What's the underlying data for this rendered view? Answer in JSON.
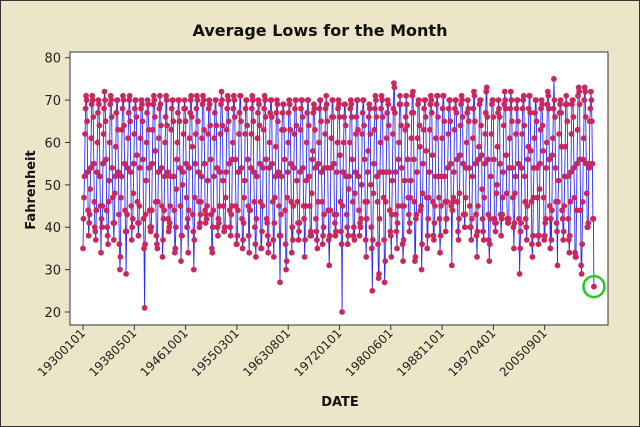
{
  "chart_data": {
    "type": "line",
    "title": "Average Lows for the Month",
    "xlabel": "DATE",
    "ylabel": "Fahrenheit",
    "ylim": [
      16,
      82
    ],
    "yticks": [
      20,
      30,
      40,
      50,
      60,
      70,
      80
    ],
    "x_start": "19300101",
    "x_interval": "monthly",
    "xtick_labels": [
      "19300101",
      "19380501",
      "19461001",
      "19550301",
      "19630801",
      "19720101",
      "19800601",
      "19881101",
      "19970401",
      "20050901"
    ],
    "xtick_every_n_points": 100,
    "grid": false,
    "highlight": {
      "label": "last point",
      "index": 996,
      "value": 26
    },
    "colors": {
      "line": "#2a2aff",
      "marker": "#c8285f",
      "highlight": "#22cc22",
      "background": "#ece5c8",
      "plot": "#ffffff"
    },
    "values": [
      35,
      42,
      47,
      52,
      62,
      68,
      71,
      70,
      65,
      53,
      44,
      38,
      41,
      43,
      49,
      54,
      61,
      69,
      71,
      70,
      66,
      55,
      46,
      40,
      39,
      37,
      44,
      53,
      60,
      67,
      70,
      69,
      64,
      52,
      45,
      34,
      42,
      40,
      45,
      55,
      62,
      68,
      72,
      70,
      65,
      56,
      44,
      40,
      38,
      36,
      46,
      51,
      60,
      69,
      71,
      70,
      66,
      54,
      47,
      41,
      37,
      41,
      48,
      52,
      59,
      67,
      70,
      70,
      63,
      53,
      43,
      36,
      30,
      33,
      47,
      52,
      63,
      68,
      71,
      70,
      64,
      55,
      44,
      39,
      29,
      39,
      43,
      54,
      61,
      67,
      70,
      71,
      65,
      53,
      45,
      37,
      40,
      42,
      48,
      55,
      62,
      68,
      70,
      70,
      66,
      57,
      46,
      41,
      38,
      41,
      45,
      54,
      61,
      68,
      70,
      69,
      65,
      56,
      42,
      35,
      21,
      36,
      43,
      51,
      60,
      67,
      70,
      69,
      63,
      54,
      44,
      40,
      39,
      40,
      44,
      55,
      63,
      69,
      71,
      70,
      66,
      58,
      46,
      38,
      36,
      35,
      46,
      53,
      61,
      68,
      71,
      69,
      64,
      54,
      45,
      33,
      37,
      42,
      44,
      52,
      60,
      66,
      71,
      70,
      64,
      53,
      42,
      39,
      40,
      41,
      45,
      52,
      63,
      68,
      70,
      70,
      65,
      52,
      44,
      34,
      35,
      40,
      49,
      56,
      60,
      67,
      70,
      70,
      65,
      54,
      45,
      32,
      38,
      38,
      50,
      53,
      62,
      68,
      70,
      68,
      65,
      55,
      47,
      40,
      42,
      34,
      44,
      54,
      61,
      67,
      70,
      71,
      66,
      59,
      43,
      39,
      30,
      37,
      47,
      55,
      62,
      68,
      71,
      70,
      65,
      53,
      46,
      40,
      41,
      43,
      46,
      52,
      61,
      69,
      71,
      70,
      63,
      55,
      44,
      41,
      43,
      42,
      45,
      51,
      62,
      68,
      70,
      69,
      64,
      56,
      43,
      35,
      34,
      40,
      44,
      52,
      61,
      67,
      70,
      70,
      64,
      54,
      40,
      38,
      42,
      41,
      45,
      53,
      62,
      69,
      72,
      70,
      64,
      51,
      45,
      39,
      40,
      40,
      47,
      53,
      63,
      68,
      71,
      70,
      65,
      55,
      44,
      40,
      38,
      43,
      45,
      56,
      60,
      68,
      71,
      70,
      66,
      56,
      45,
      36,
      36,
      38,
      44,
      53,
      62,
      67,
      71,
      71,
      65,
      54,
      42,
      35,
      37,
      41,
      47,
      51,
      62,
      68,
      70,
      70,
      64,
      56,
      45,
      38,
      34,
      44,
      44,
      54,
      62,
      68,
      71,
      70,
      65,
      53,
      46,
      40,
      36,
      33,
      42,
      52,
      61,
      67,
      70,
      69,
      64,
      55,
      46,
      35,
      35,
      39,
      45,
      54,
      63,
      68,
      71,
      70,
      66,
      56,
      42,
      41,
      38,
      34,
      36,
      54,
      60,
      67,
      70,
      70,
      66,
      55,
      46,
      37,
      33,
      41,
      47,
      52,
      59,
      67,
      70,
      69,
      65,
      53,
      45,
      38,
      27,
      38,
      43,
      52,
      63,
      67,
      69,
      69,
      63,
      56,
      44,
      36,
      30,
      32,
      47,
      53,
      60,
      67,
      70,
      69,
      63,
      55,
      46,
      34,
      40,
      37,
      45,
      54,
      62,
      68,
      70,
      70,
      64,
      51,
      46,
      41,
      37,
      39,
      41,
      53,
      63,
      68,
      70,
      70,
      66,
      54,
      45,
      42,
      33,
      37,
      45,
      51,
      60,
      67,
      70,
      70,
      64,
      52,
      45,
      38,
      39,
      38,
      48,
      56,
      58,
      67,
      69,
      68,
      63,
      54,
      42,
      39,
      37,
      35,
      46,
      55,
      60,
      68,
      70,
      70,
      65,
      53,
      46,
      36,
      38,
      40,
      43,
      54,
      62,
      68,
      71,
      69,
      65,
      54,
      44,
      37,
      31,
      38,
      44,
      54,
      61,
      66,
      70,
      70,
      66,
      55,
      43,
      41,
      38,
      39,
      43,
      53,
      60,
      68,
      70,
      69,
      66,
      57,
      46,
      39,
      36,
      20,
      45,
      53,
      60,
      66,
      69,
      69,
      64,
      52,
      43,
      40,
      36,
      38,
      49,
      52,
      60,
      68,
      70,
      69,
      66,
      56,
      46,
      38,
      40,
      37,
      48,
      53,
      62,
      66,
      70,
      70,
      63,
      52,
      44,
      38,
      41,
      40,
      42,
      50,
      62,
      67,
      70,
      70,
      64,
      56,
      46,
      37,
      33,
      42,
      46,
      53,
      58,
      66,
      69,
      68,
      62,
      50,
      40,
      35,
      25,
      37,
      48,
      55,
      63,
      68,
      71,
      70,
      66,
      52,
      46,
      36,
      28,
      29,
      42,
      53,
      60,
      68,
      71,
      70,
      66,
      53,
      47,
      37,
      27,
      32,
      46,
      53,
      61,
      67,
      70,
      69,
      64,
      53,
      44,
      39,
      38,
      33,
      43,
      51,
      62,
      68,
      74,
      73,
      67,
      53,
      43,
      39,
      35,
      41,
      45,
      56,
      60,
      69,
      71,
      69,
      64,
      54,
      45,
      36,
      32,
      37,
      45,
      51,
      63,
      66,
      71,
      69,
      64,
      56,
      47,
      43,
      39,
      41,
      47,
      51,
      61,
      67,
      71,
      72,
      67,
      56,
      46,
      32,
      33,
      42,
      43,
      53,
      61,
      69,
      70,
      70,
      64,
      59,
      44,
      45,
      30,
      36,
      48,
      55,
      63,
      68,
      70,
      70,
      66,
      58,
      47,
      35,
      38,
      42,
      47,
      53,
      63,
      69,
      71,
      70,
      67,
      57,
      46,
      38,
      37,
      41,
      45,
      52,
      61,
      69,
      71,
      71,
      66,
      52,
      47,
      42,
      34,
      38,
      45,
      52,
      61,
      68,
      71,
      71,
      65,
      52,
      46,
      39,
      42,
      42,
      46,
      54,
      62,
      68,
      70,
      70,
      65,
      55,
      45,
      31,
      44,
      46,
      47,
      53,
      63,
      68,
      70,
      70,
      67,
      56,
      46,
      39,
      37,
      42,
      48,
      57,
      64,
      69,
      71,
      70,
      66,
      55,
      43,
      43,
      40,
      43,
      47,
      54,
      60,
      67,
      70,
      68,
      65,
      54,
      45,
      40,
      40,
      37,
      42,
      52,
      61,
      68,
      72,
      71,
      65,
      55,
      43,
      38,
      33,
      39,
      45,
      56,
      59,
      69,
      70,
      70,
      64,
      57,
      49,
      42,
      39,
      37,
      47,
      55,
      62,
      67,
      72,
      73,
      66,
      56,
      43,
      37,
      32,
      36,
      42,
      52,
      62,
      69,
      70,
      70,
      66,
      56,
      42,
      41,
      39,
      41,
      48,
      50,
      59,
      67,
      70,
      68,
      66,
      55,
      43,
      38,
      42,
      43,
      47,
      53,
      64,
      69,
      72,
      70,
      68,
      57,
      48,
      42,
      41,
      41,
      42,
      54,
      61,
      68,
      72,
      70,
      65,
      54,
      47,
      40,
      35,
      41,
      48,
      52,
      62,
      68,
      70,
      70,
      65,
      55,
      42,
      29,
      35,
      39,
      41,
      54,
      62,
      68,
      70,
      71,
      64,
      52,
      46,
      42,
      40,
      37,
      45,
      56,
      59,
      68,
      71,
      71,
      67,
      58,
      46,
      36,
      33,
      38,
      47,
      54,
      61,
      67,
      70,
      70,
      65,
      54,
      47,
      38,
      36,
      38,
      49,
      55,
      63,
      68,
      70,
      69,
      64,
      58,
      47,
      37,
      38,
      41,
      42,
      54,
      60,
      69,
      72,
      71,
      68,
      56,
      45,
      35,
      42,
      37,
      44,
      57,
      61,
      68,
      75,
      70,
      66,
      54,
      46,
      41,
      39,
      31,
      46,
      51,
      62,
      67,
      69,
      70,
      67,
      59,
      44,
      42,
      37,
      39,
      45,
      52,
      59,
      69,
      71,
      69,
      65,
      52,
      42,
      37,
      34,
      38,
      46,
      53,
      62,
      69,
      70,
      70,
      66,
      54,
      47,
      34,
      33,
      33,
      44,
      55,
      63,
      71,
      73,
      72,
      69,
      56,
      44,
      31,
      29,
      36,
      46,
      56,
      61,
      70,
      73,
      72,
      66,
      55,
      48,
      40,
      40,
      41,
      55,
      54,
      65,
      68,
      72,
      70,
      65,
      55,
      42,
      42,
      26
    ]
  }
}
